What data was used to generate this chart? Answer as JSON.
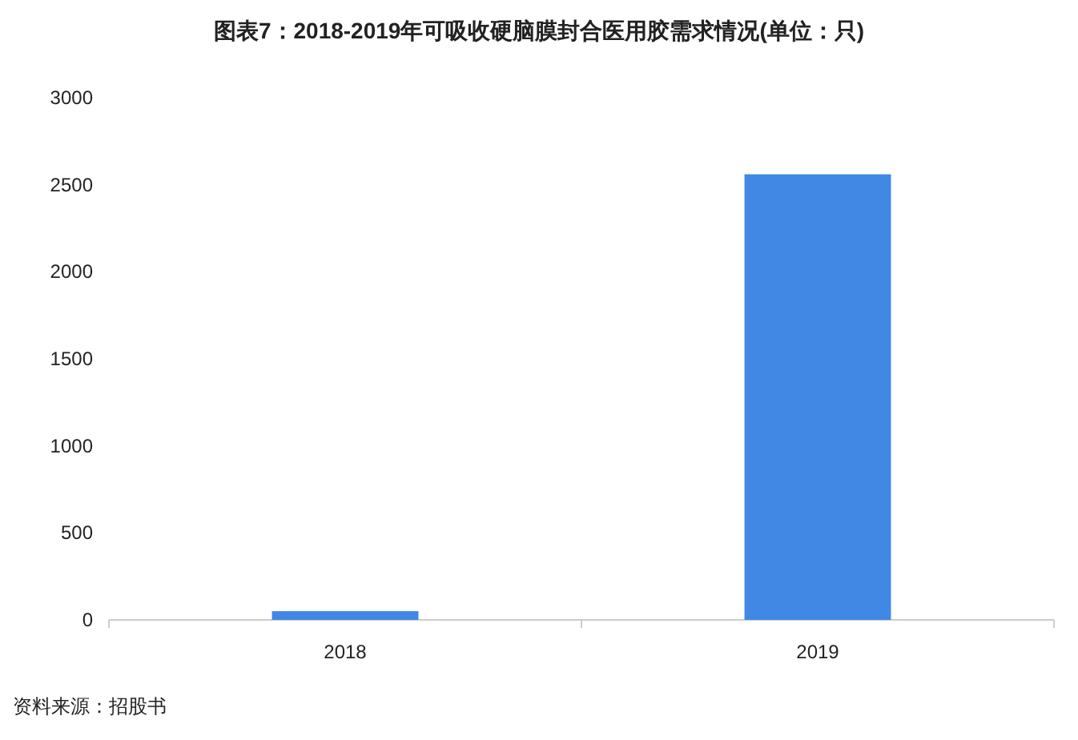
{
  "chart_data": {
    "type": "bar",
    "title": "图表7：2018-2019年可吸收硬脑膜封合医用胶需求情况(单位：只)",
    "categories": [
      "2018",
      "2019"
    ],
    "series": [
      {
        "color": "#4187e4",
        "values": [
          50,
          2560
        ]
      }
    ],
    "ylim": [
      0,
      3000
    ],
    "yticks": [
      0,
      500,
      1000,
      1500,
      2000,
      2500,
      3000
    ],
    "grid": false,
    "annotations": [
      "资料来源：招股书"
    ]
  }
}
